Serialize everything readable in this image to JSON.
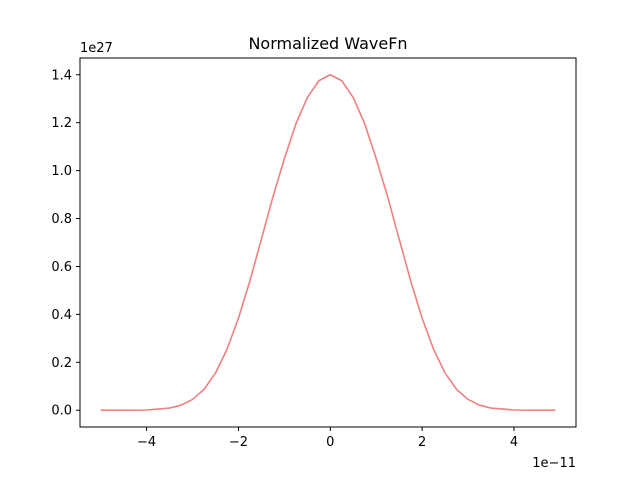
{
  "chart_data": {
    "type": "line",
    "title": "Normalized WaveFn",
    "xlabel": "",
    "ylabel": "",
    "x_offset_label": "1e−11",
    "y_offset_label": "1e27",
    "xlim": [
      -5.45,
      5.35
    ],
    "ylim": [
      -0.07,
      1.47
    ],
    "x_ticks": [
      -4,
      -2,
      0,
      2,
      4
    ],
    "x_tick_labels": [
      "−4",
      "−2",
      "0",
      "2",
      "4"
    ],
    "y_ticks": [
      0.0,
      0.2,
      0.4,
      0.6,
      0.8,
      1.0,
      1.2,
      1.4
    ],
    "y_tick_labels": [
      "0.0",
      "0.2",
      "0.4",
      "0.6",
      "0.8",
      "1.0",
      "1.2",
      "1.4"
    ],
    "grid": false,
    "series": [
      {
        "color": "#f08080",
        "x": [
          -5.0,
          -4.5,
          -4.0,
          -3.5,
          -3.25,
          -3.0,
          -2.75,
          -2.5,
          -2.25,
          -2.0,
          -1.75,
          -1.5,
          -1.25,
          -1.0,
          -0.75,
          -0.5,
          -0.25,
          0.0,
          0.25,
          0.5,
          0.75,
          1.0,
          1.25,
          1.5,
          1.75,
          2.0,
          2.25,
          2.5,
          2.75,
          3.0,
          3.25,
          3.5,
          4.0,
          4.5,
          4.9
        ],
        "y": [
          0.0,
          0.0,
          0.001,
          0.009,
          0.021,
          0.045,
          0.087,
          0.155,
          0.254,
          0.384,
          0.54,
          0.714,
          0.89,
          1.05,
          1.195,
          1.305,
          1.375,
          1.4,
          1.375,
          1.305,
          1.195,
          1.05,
          0.89,
          0.714,
          0.54,
          0.384,
          0.254,
          0.155,
          0.087,
          0.045,
          0.021,
          0.009,
          0.001,
          0.0,
          0.0
        ]
      }
    ]
  }
}
